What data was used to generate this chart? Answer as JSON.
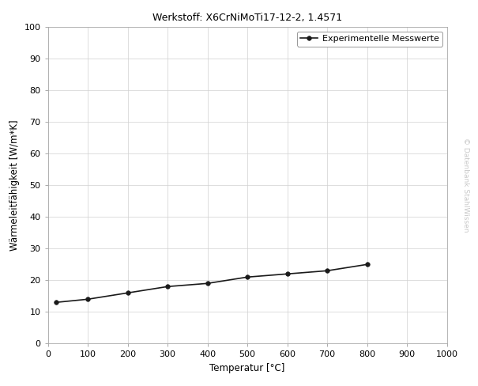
{
  "title": "Werkstoff: X6CrNiMoTi17-12-2, 1.4571",
  "xlabel": "Temperatur [°C]",
  "ylabel": "Wärmeleitfähigkeit [W/m*K]",
  "legend_label": "Experimentelle Messwerte",
  "watermark": "© Datenbank StahlWissen",
  "x_data": [
    20,
    100,
    200,
    300,
    400,
    500,
    600,
    700,
    800
  ],
  "y_data": [
    13,
    14,
    16,
    18,
    19,
    21,
    22,
    23,
    25
  ],
  "xlim": [
    0,
    1000
  ],
  "ylim": [
    0,
    100
  ],
  "xticks": [
    0,
    100,
    200,
    300,
    400,
    500,
    600,
    700,
    800,
    900,
    1000
  ],
  "yticks": [
    0,
    10,
    20,
    30,
    40,
    50,
    60,
    70,
    80,
    90,
    100
  ],
  "line_color": "#1a1a1a",
  "marker": "o",
  "marker_size": 4,
  "line_width": 1.2,
  "bg_color": "#ffffff",
  "grid_color": "#d0d0d0",
  "grid_linewidth": 0.5,
  "title_fontsize": 9,
  "label_fontsize": 8.5,
  "tick_fontsize": 8,
  "legend_fontsize": 8,
  "watermark_fontsize": 6.5,
  "watermark_color": "#c8c8c8",
  "spine_color": "#aaaaaa",
  "spine_linewidth": 0.6
}
